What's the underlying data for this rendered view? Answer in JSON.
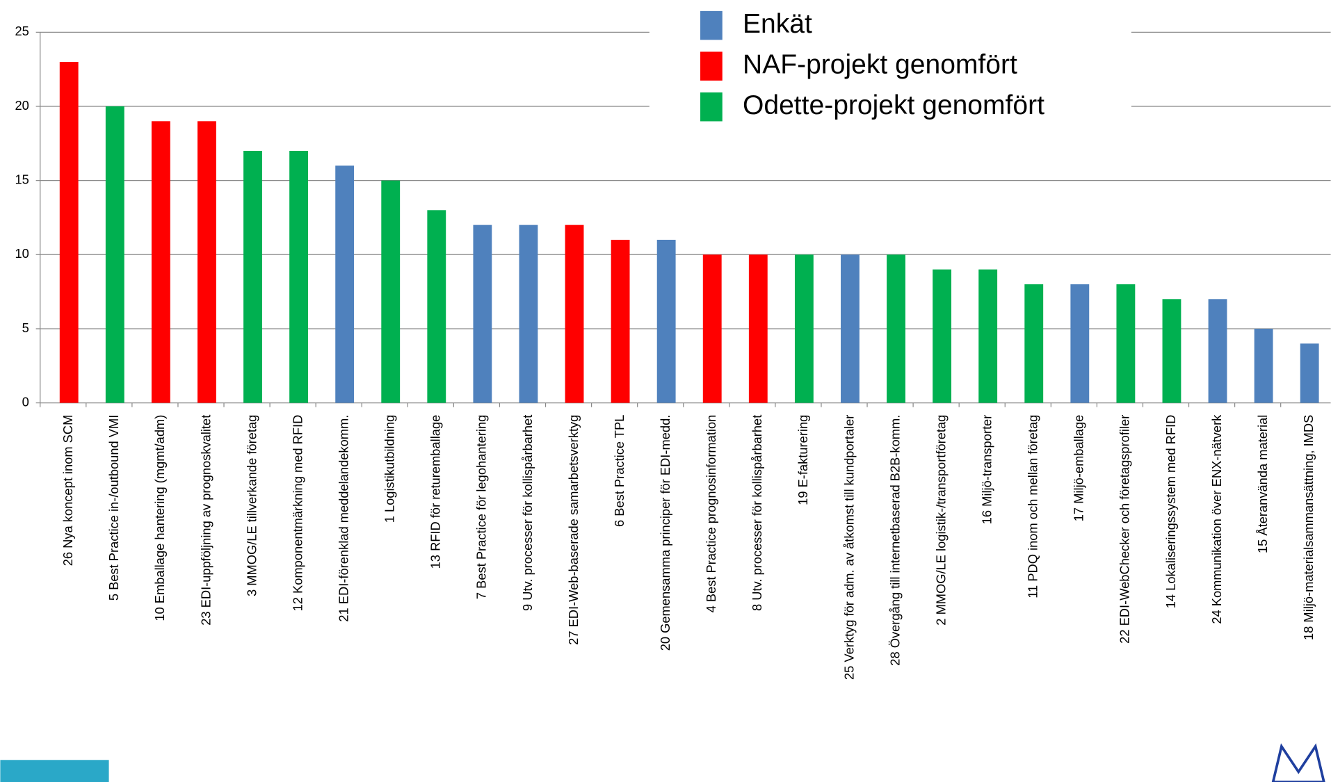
{
  "chart_data": {
    "type": "bar",
    "categories": [
      "26 Nya koncept inom SCM",
      "5 Best Practice in-/outbound VMI",
      "10 Emballage hantering (mgmt/adm)",
      "23 EDI-uppföljning av prognoskvalitet",
      "3 MMOG/LE tillverkande företag",
      "12 Komponentmärkning med RFID",
      "21 EDI-förenklad meddelandekomm.",
      "1 Logistikutbildning",
      "13 RFID för returemballage",
      "7 Best Practice för legohantering",
      "9 Utv. processer för kollispårbarhet",
      "27 EDI-Web-baserade samarbetsverktyg",
      "6 Best Practice TPL",
      "20 Gemensamma principer för EDI-medd.",
      "4 Best Practice prognosinformation",
      "8 Utv. processer för kollispårbarhet",
      "19 E-fakturering",
      "25 Verktyg för adm. av åtkomst till kundportaler",
      "28 Övergång till internetbaserad B2B-komm.",
      "2 MMOG/LE logistik-/transportföretag",
      "16 Miljö-transporter",
      "11 PDQ inom och mellan företag",
      "17 Miljö-emballage",
      "22 EDI-WebChecker och företagsprofiler",
      "14 Lokaliseringssystem med RFID",
      "24 Kommunikation över ENX-nätverk",
      "15 Återanvända material",
      "18 Miljö-materialsammansättning, IMDS"
    ],
    "values": [
      23,
      20,
      19,
      19,
      17,
      17,
      16,
      15,
      13,
      12,
      12,
      12,
      11,
      11,
      10,
      10,
      10,
      10,
      10,
      9,
      9,
      8,
      8,
      8,
      7,
      7,
      5,
      4
    ],
    "colors": [
      "#ff0000",
      "#00b050",
      "#ff0000",
      "#ff0000",
      "#00b050",
      "#00b050",
      "#4f81bd",
      "#00b050",
      "#00b050",
      "#4f81bd",
      "#4f81bd",
      "#ff0000",
      "#ff0000",
      "#4f81bd",
      "#ff0000",
      "#ff0000",
      "#00b050",
      "#4f81bd",
      "#00b050",
      "#00b050",
      "#00b050",
      "#00b050",
      "#4f81bd",
      "#00b050",
      "#00b050",
      "#4f81bd",
      "#4f81bd",
      "#4f81bd"
    ],
    "legend": [
      {
        "name": "Enkät",
        "color": "#4f81bd"
      },
      {
        "name": "NAF-projekt genomfört",
        "color": "#ff0000"
      },
      {
        "name": "Odette-projekt genomfört",
        "color": "#00b050"
      }
    ],
    "ylim": [
      0,
      25
    ],
    "yticks": [
      0,
      5,
      10,
      15,
      20,
      25
    ],
    "grid": true
  }
}
